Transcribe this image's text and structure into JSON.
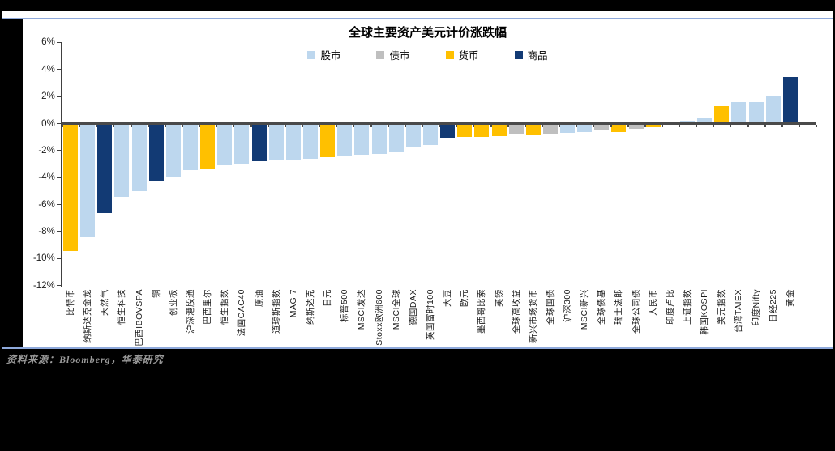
{
  "title": "全球主要资产美元计价涨跌幅",
  "footer": {
    "source_label": "资料来源：Bloomberg，华泰研究"
  },
  "chart_data": {
    "type": "bar",
    "title": "全球主要资产美元计价涨跌幅",
    "ylabel": "",
    "xlabel": "",
    "ylim": [
      -12,
      6
    ],
    "yticks": [
      "6%",
      "4%",
      "2%",
      "0%",
      "-2%",
      "-4%",
      "-6%",
      "-8%",
      "-10%",
      "-12%"
    ],
    "grid": false,
    "legend_position": "top-center",
    "legend": [
      {
        "label": "股市",
        "color": "#BDD7EE"
      },
      {
        "label": "债市",
        "color": "#BFBFBF"
      },
      {
        "label": "货币",
        "color": "#FFC000"
      },
      {
        "label": "商品",
        "color": "#123A74"
      }
    ],
    "series_colors": {
      "股市": "#BDD7EE",
      "债市": "#BFBFBF",
      "货币": "#FFC000",
      "商品": "#123A74"
    },
    "bars": [
      {
        "label": "比特币",
        "series": "货币",
        "value": -9.45
      },
      {
        "label": "纳斯达克金龙",
        "series": "股市",
        "value": -8.4
      },
      {
        "label": "天然气",
        "series": "商品",
        "value": -6.6
      },
      {
        "label": "恒生科技",
        "series": "股市",
        "value": -5.45
      },
      {
        "label": "巴西IBOVSPA",
        "series": "股市",
        "value": -5.0
      },
      {
        "label": "铜",
        "series": "商品",
        "value": -4.2
      },
      {
        "label": "创业板",
        "series": "股市",
        "value": -4.0
      },
      {
        "label": "沪深港股通",
        "series": "股市",
        "value": -3.45
      },
      {
        "label": "巴西里尔",
        "series": "货币",
        "value": -3.4
      },
      {
        "label": "恒生指数",
        "series": "股市",
        "value": -3.1
      },
      {
        "label": "法国CAC40",
        "series": "股市",
        "value": -3.0
      },
      {
        "label": "原油",
        "series": "商品",
        "value": -2.8
      },
      {
        "label": "道琼斯指数",
        "series": "股市",
        "value": -2.75
      },
      {
        "label": "MAG 7",
        "series": "股市",
        "value": -2.7
      },
      {
        "label": "纳斯达克",
        "series": "股市",
        "value": -2.6
      },
      {
        "label": "日元",
        "series": "货币",
        "value": -2.5
      },
      {
        "label": "标普500",
        "series": "股市",
        "value": -2.45
      },
      {
        "label": "MSCI发达",
        "series": "股市",
        "value": -2.35
      },
      {
        "label": "Stoxx欧洲600",
        "series": "股市",
        "value": -2.25
      },
      {
        "label": "MSCI全球",
        "series": "股市",
        "value": -2.1
      },
      {
        "label": "德国DAX",
        "series": "股市",
        "value": -1.75
      },
      {
        "label": "英国富时100",
        "series": "股市",
        "value": -1.6
      },
      {
        "label": "大豆",
        "series": "商品",
        "value": -1.1
      },
      {
        "label": "欧元",
        "series": "货币",
        "value": -1.0
      },
      {
        "label": "墨西哥比索",
        "series": "货币",
        "value": -1.0
      },
      {
        "label": "英镑",
        "series": "货币",
        "value": -0.9
      },
      {
        "label": "全球高收益",
        "series": "债市",
        "value": -0.8
      },
      {
        "label": "新兴市场货币",
        "series": "货币",
        "value": -0.85
      },
      {
        "label": "全球国债",
        "series": "债市",
        "value": -0.75
      },
      {
        "label": "沪深300",
        "series": "股市",
        "value": -0.68
      },
      {
        "label": "MSCI新兴",
        "series": "股市",
        "value": -0.62
      },
      {
        "label": "全球债基",
        "series": "债市",
        "value": -0.5
      },
      {
        "label": "瑞士法郎",
        "series": "货币",
        "value": -0.6
      },
      {
        "label": "全球公司债",
        "series": "债市",
        "value": -0.4
      },
      {
        "label": "人民币",
        "series": "货币",
        "value": -0.28
      },
      {
        "label": "印度卢比",
        "series": "货币",
        "value": 0.1
      },
      {
        "label": "上证指数",
        "series": "股市",
        "value": 0.2
      },
      {
        "label": "韩国KOSPI",
        "series": "股市",
        "value": 0.4
      },
      {
        "label": "美元指数",
        "series": "货币",
        "value": 1.3
      },
      {
        "label": "台湾TAIEX",
        "series": "股市",
        "value": 1.6
      },
      {
        "label": "印度Nifty",
        "series": "股市",
        "value": 1.6
      },
      {
        "label": "日经225",
        "series": "股市",
        "value": 2.05
      },
      {
        "label": "黄金",
        "series": "商品",
        "value": 3.45
      }
    ]
  }
}
